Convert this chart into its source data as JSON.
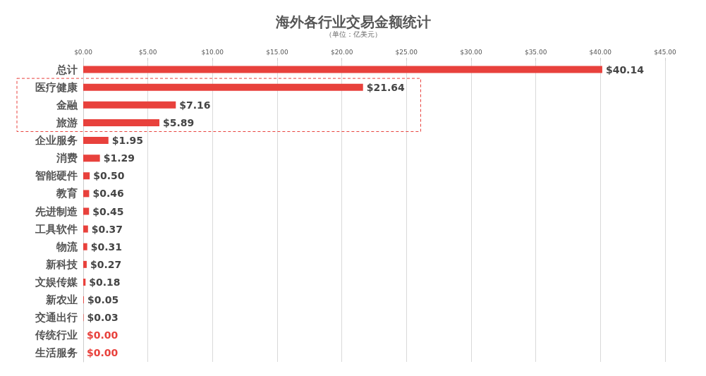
{
  "chart_data": {
    "type": "bar",
    "orientation": "horizontal",
    "title": "海外各行业交易金额统计",
    "subtitle": "（单位：亿美元）",
    "categories": [
      "总计",
      "医疗健康",
      "金融",
      "旅游",
      "企业服务",
      "消费",
      "智能硬件",
      "教育",
      "先进制造",
      "工具软件",
      "物流",
      "新科技",
      "文娱传媒",
      "新农业",
      "交通出行",
      "传统行业",
      "生活服务"
    ],
    "values": [
      40.14,
      21.64,
      7.16,
      5.89,
      1.95,
      1.29,
      0.5,
      0.46,
      0.45,
      0.37,
      0.31,
      0.27,
      0.18,
      0.05,
      0.03,
      0,
      0
    ],
    "value_labels": [
      "$40.14",
      "$21.64",
      "$7.16",
      "$5.89",
      "$1.95",
      "$1.29",
      "$0.50",
      "$0.46",
      "$0.45",
      "$0.37",
      "$0.31",
      "$0.27",
      "$0.18",
      "$0.05",
      "$0.03",
      "$0.00",
      "$0.00"
    ],
    "color": "#e8413c",
    "xlim": [
      0,
      45
    ],
    "xticks": [
      {
        "value": 0,
        "label": "$0.00"
      },
      {
        "value": 5,
        "label": "$5.00"
      },
      {
        "value": 10,
        "label": "$10.00"
      },
      {
        "value": 15,
        "label": "$15.00"
      },
      {
        "value": 20,
        "label": "$20.00"
      },
      {
        "value": 25,
        "label": "$25.00"
      },
      {
        "value": 30,
        "label": "$30.00"
      },
      {
        "value": 35,
        "label": "$35.00"
      },
      {
        "value": 40,
        "label": "$40.00"
      },
      {
        "value": 45,
        "label": "$45.00"
      }
    ],
    "grid": "x"
  }
}
